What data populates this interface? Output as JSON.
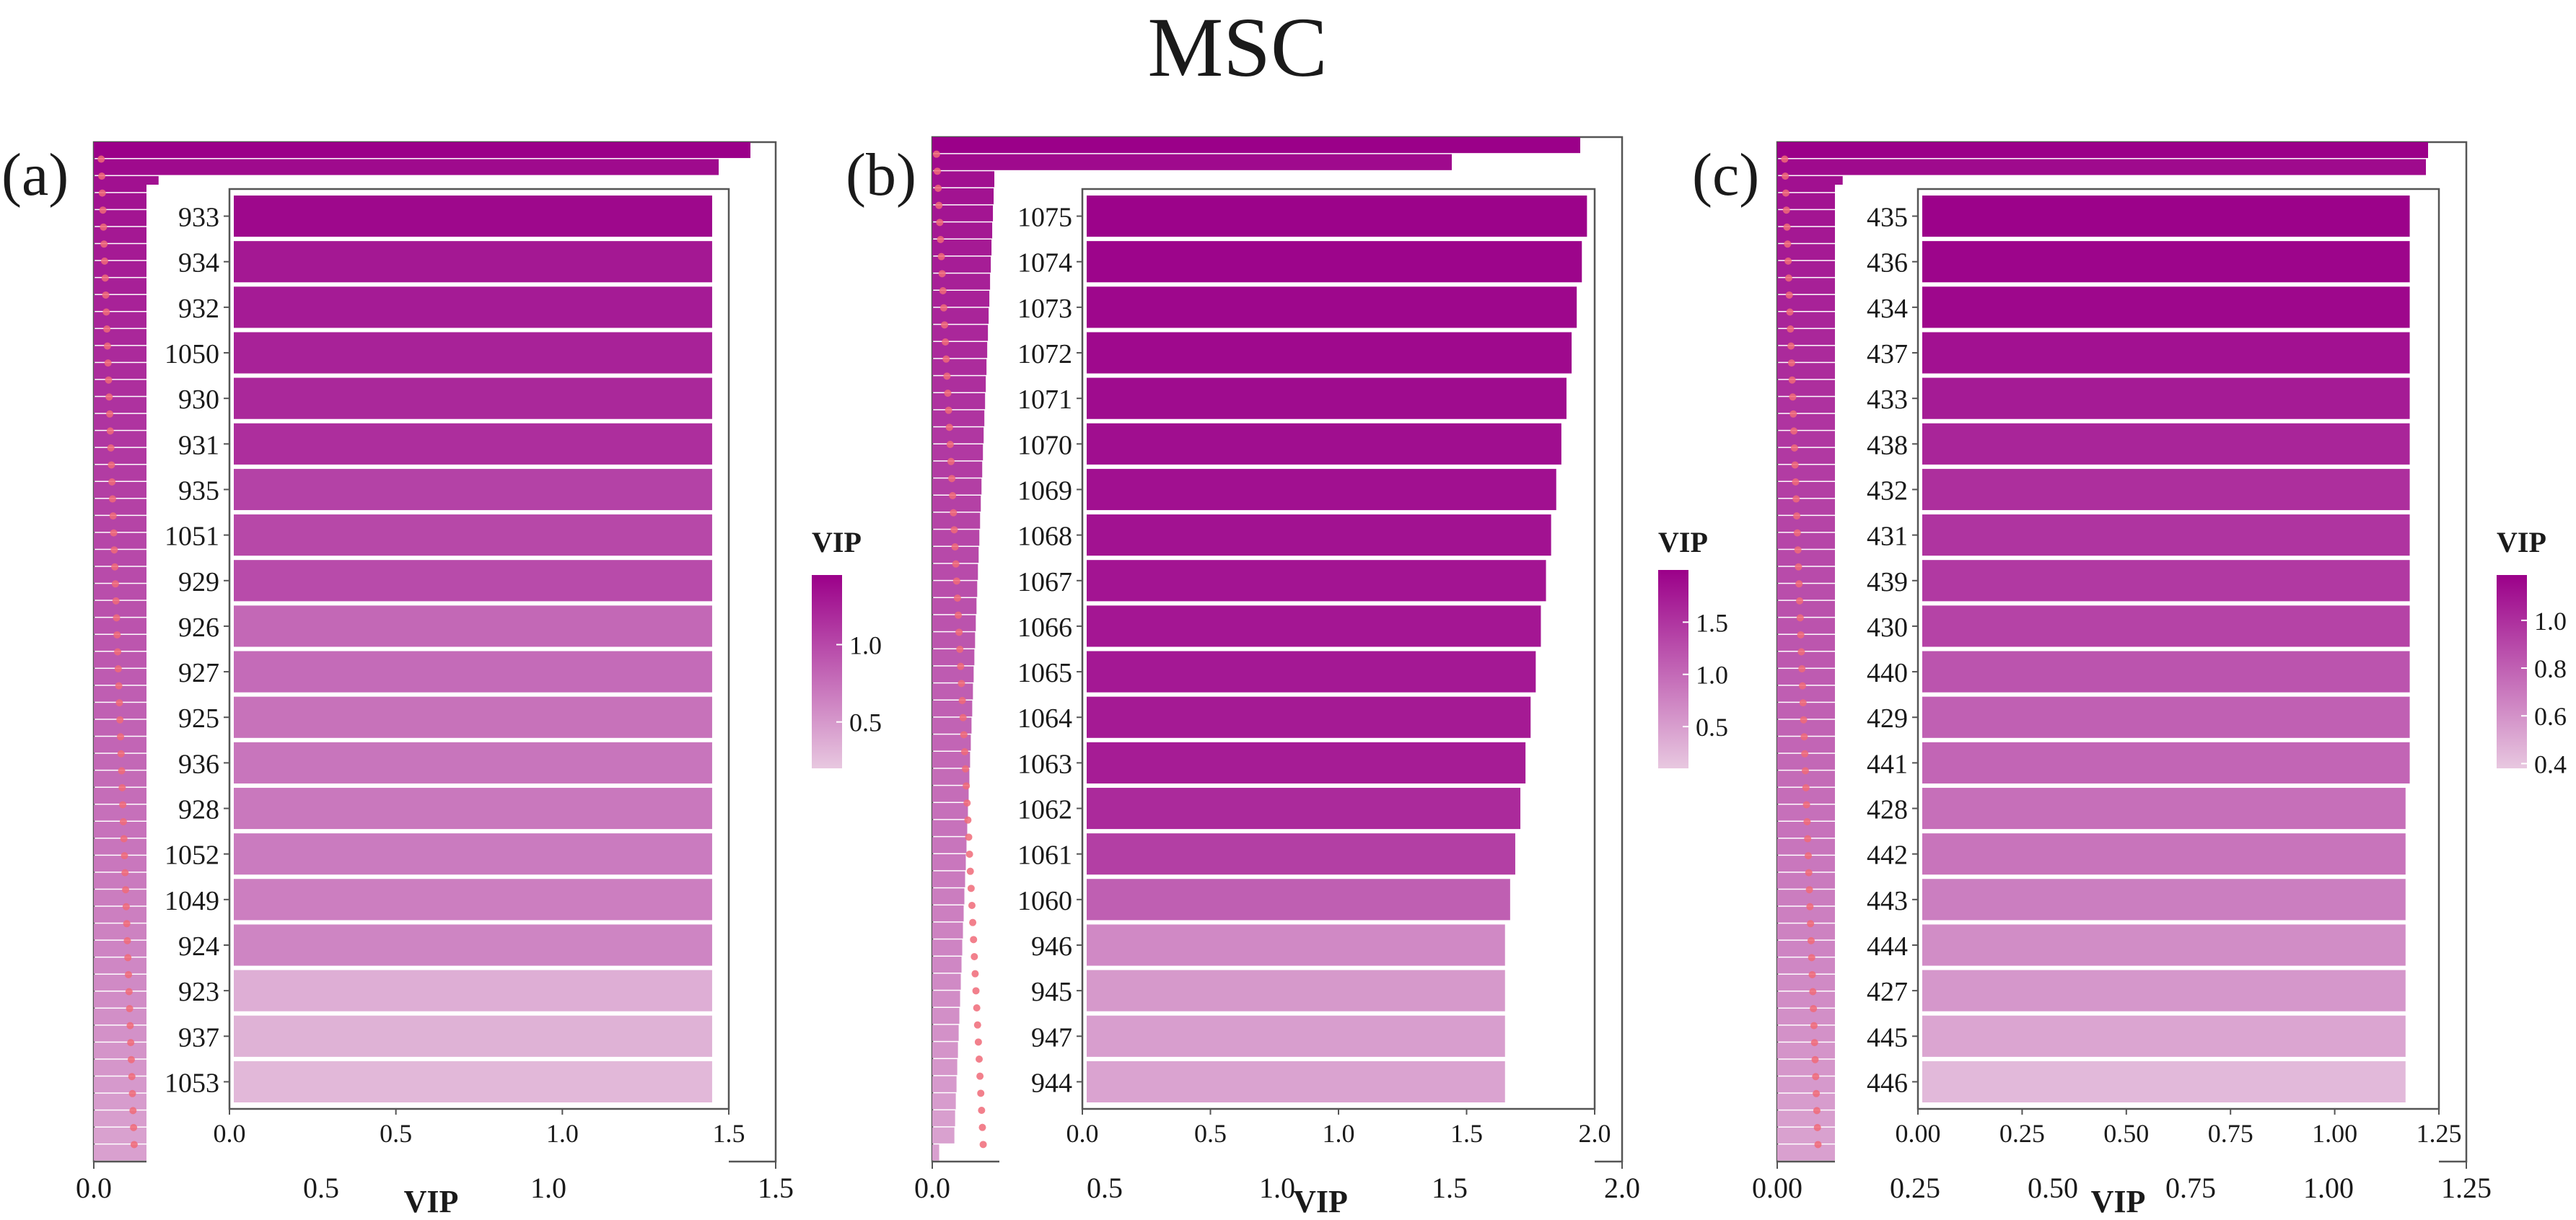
{
  "figure_title": "MSC",
  "colors": {
    "low": "#e8c8e0",
    "high": "#9b0089",
    "dots": "#f06a78",
    "axis": "#333333"
  },
  "chart_data": [
    {
      "type": "bar",
      "panel_label": "(a)",
      "title": "",
      "xlabel": "VIP",
      "ylabel": "",
      "legend_title": "VIP",
      "legend_ticks": [
        "1.0",
        "0.5"
      ],
      "legend_tick_values": [
        1.0,
        0.5
      ],
      "legend_range": [
        0.2,
        1.45
      ],
      "inset_xlim": [
        0.0,
        1.5
      ],
      "inset_xticks": [
        "0.0",
        "0.5",
        "1.0",
        "1.5"
      ],
      "outer_xlim": [
        0.0,
        1.5
      ],
      "outer_xticks": [
        "0.0",
        "0.5",
        "1.0",
        "1.5"
      ],
      "categories": [
        "933",
        "934",
        "932",
        "1050",
        "930",
        "931",
        "935",
        "1051",
        "929",
        "926",
        "927",
        "925",
        "936",
        "928",
        "1052",
        "1049",
        "924",
        "923",
        "937",
        "1053"
      ],
      "values": [
        1.45,
        1.45,
        1.45,
        1.45,
        1.45,
        1.45,
        1.45,
        1.45,
        1.45,
        1.45,
        1.45,
        1.45,
        1.45,
        1.45,
        1.45,
        1.45,
        1.45,
        1.45,
        1.45,
        1.45
      ],
      "color_values": [
        1.4,
        1.3,
        1.28,
        1.24,
        1.2,
        1.16,
        1.04,
        1.0,
        0.98,
        0.8,
        0.78,
        0.74,
        0.72,
        0.7,
        0.68,
        0.66,
        0.62,
        0.36,
        0.34,
        0.3
      ]
    },
    {
      "type": "bar",
      "panel_label": "(b)",
      "title": "",
      "xlabel": "VIP",
      "ylabel": "",
      "legend_title": "VIP",
      "legend_ticks": [
        "1.5",
        "1.0",
        "0.5"
      ],
      "legend_tick_values": [
        1.5,
        1.0,
        0.5
      ],
      "legend_range": [
        0.1,
        2.0
      ],
      "inset_xlim": [
        0.0,
        2.0
      ],
      "inset_xticks": [
        "0.0",
        "0.5",
        "1.0",
        "1.5",
        "2.0"
      ],
      "outer_xlim": [
        0.0,
        2.0
      ],
      "outer_xticks": [
        "0.0",
        "0.5",
        "1.0",
        "1.5",
        "2.0"
      ],
      "categories": [
        "1075",
        "1074",
        "1073",
        "1072",
        "1071",
        "1070",
        "1069",
        "1068",
        "1067",
        "1066",
        "1065",
        "1064",
        "1063",
        "1062",
        "1061",
        "1060",
        "946",
        "945",
        "947",
        "944"
      ],
      "values": [
        1.97,
        1.95,
        1.93,
        1.91,
        1.89,
        1.87,
        1.85,
        1.83,
        1.81,
        1.79,
        1.77,
        1.75,
        1.73,
        1.71,
        1.69,
        1.67,
        1.65,
        1.65,
        1.65,
        1.65
      ],
      "color_values": [
        1.97,
        1.95,
        1.93,
        1.91,
        1.89,
        1.87,
        1.85,
        1.83,
        1.81,
        1.79,
        1.77,
        1.75,
        1.73,
        1.6,
        1.4,
        1.1,
        0.7,
        0.55,
        0.5,
        0.45
      ]
    },
    {
      "type": "bar",
      "panel_label": "(c)",
      "title": "",
      "xlabel": "VIP",
      "ylabel": "",
      "legend_title": "VIP",
      "legend_ticks": [
        "1.0",
        "0.8",
        "0.6",
        "0.4"
      ],
      "legend_tick_values": [
        1.0,
        0.8,
        0.6,
        0.4
      ],
      "legend_range": [
        0.38,
        1.19
      ],
      "inset_xlim": [
        0.0,
        1.25
      ],
      "inset_xticks": [
        "0.00",
        "0.25",
        "0.50",
        "0.75",
        "1.00",
        "1.25"
      ],
      "outer_xlim": [
        0.0,
        1.25
      ],
      "outer_xticks": [
        "0.00",
        "0.25",
        "0.50",
        "0.75",
        "1.00",
        "1.25"
      ],
      "categories": [
        "435",
        "436",
        "434",
        "437",
        "433",
        "438",
        "432",
        "431",
        "439",
        "430",
        "440",
        "429",
        "441",
        "428",
        "442",
        "443",
        "444",
        "427",
        "445",
        "446"
      ],
      "values": [
        1.18,
        1.18,
        1.18,
        1.18,
        1.18,
        1.18,
        1.18,
        1.18,
        1.18,
        1.18,
        1.18,
        1.18,
        1.18,
        1.17,
        1.17,
        1.17,
        1.17,
        1.17,
        1.17,
        1.17
      ],
      "color_values": [
        1.18,
        1.17,
        1.16,
        1.12,
        1.08,
        1.04,
        1.0,
        0.98,
        0.96,
        0.92,
        0.85,
        0.8,
        0.78,
        0.74,
        0.72,
        0.68,
        0.62,
        0.58,
        0.52,
        0.44
      ]
    }
  ]
}
